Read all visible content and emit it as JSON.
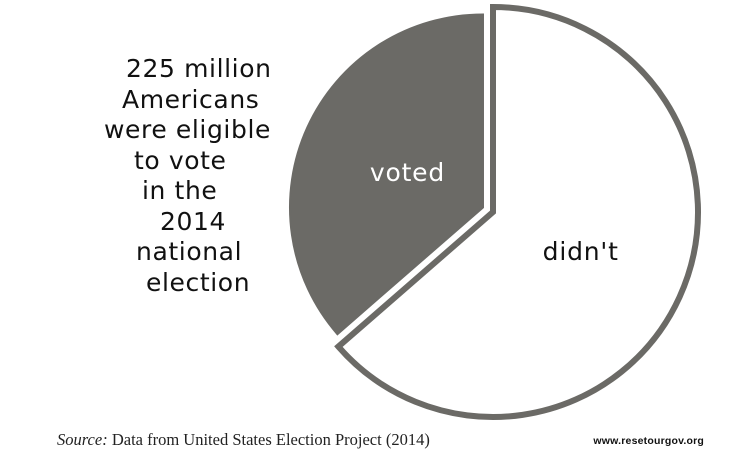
{
  "chart_data": {
    "type": "pie",
    "title": "",
    "slices": [
      {
        "label": "voted",
        "value": 36.4,
        "color": "#6b6a66",
        "label_color": "#ffffff"
      },
      {
        "label": "didn't",
        "value": 63.6,
        "color": "#ffffff",
        "label_color": "#111111"
      }
    ],
    "slice_outline_color": "#6b6a66",
    "caption_lines": [
      "225 million",
      "Americans",
      "were eligible",
      "to vote",
      "in the",
      "2014",
      "national",
      "election"
    ]
  },
  "footer": {
    "source_label": "Source:",
    "source_text": " Data from United States Election Project (2014)",
    "website": "www.resetourgov.org"
  }
}
